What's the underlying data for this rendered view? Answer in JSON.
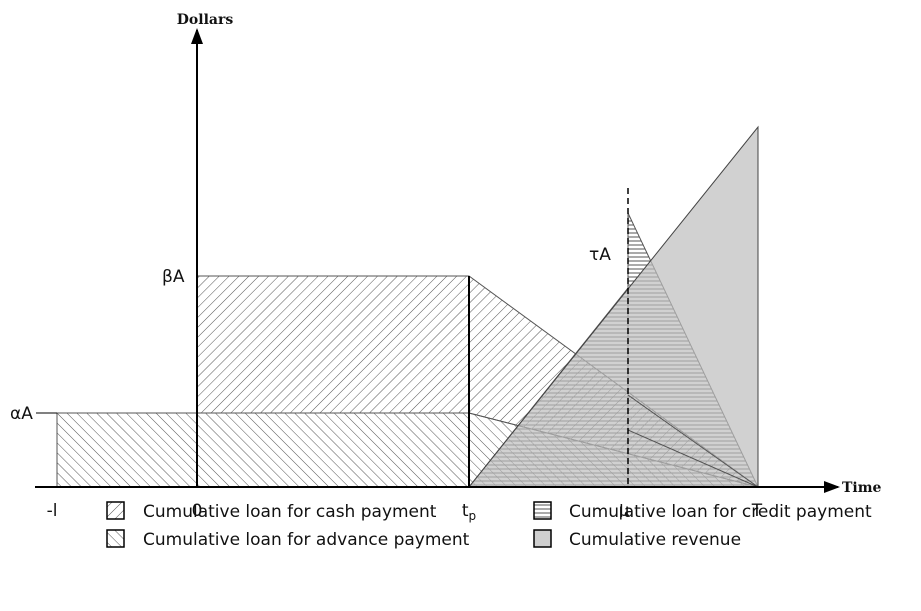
{
  "axes": {
    "y_label": "Dollars",
    "x_label": "Time"
  },
  "x_labels": [
    {
      "text": "-l"
    },
    {
      "text": "0"
    },
    {
      "text": "t",
      "subscript": "p"
    },
    {
      "text": "μ"
    },
    {
      "text": "T"
    }
  ],
  "y_labels": [
    "αA",
    "βA",
    "τA"
  ],
  "legend": [
    "Cumulative loan for cash payment",
    "Cumulative loan for credit payment",
    "Cumulative loan for advance payment",
    "Cumulative revenue"
  ]
}
